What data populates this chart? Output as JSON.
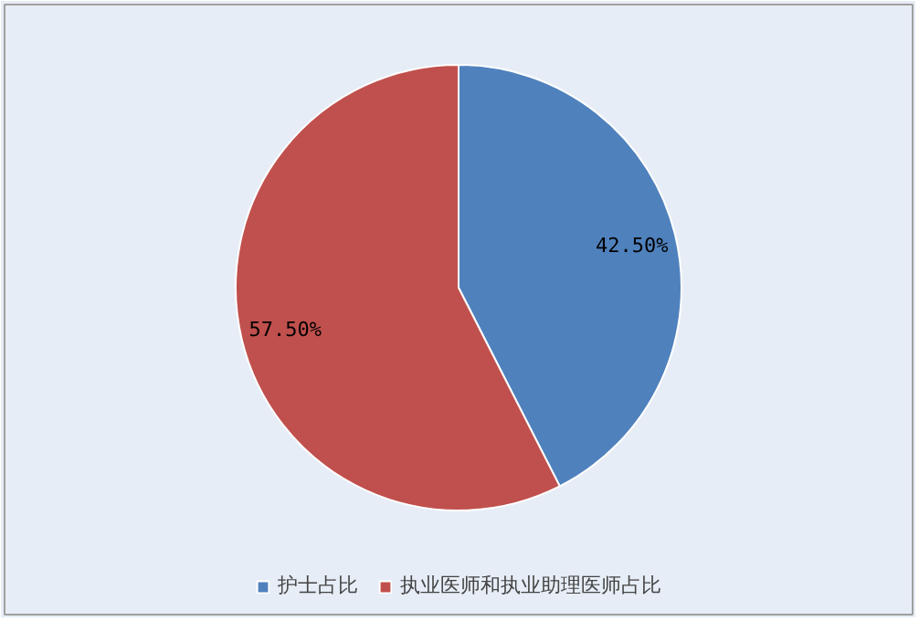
{
  "chart_data": {
    "type": "pie",
    "categories": [
      "护士占比",
      "执业医师和执业助理医师占比"
    ],
    "values": [
      42.5,
      57.5
    ],
    "colors": [
      "#4f81bd",
      "#c0504d"
    ],
    "value_labels": [
      "42.50%",
      "57.50%"
    ],
    "legend": "bottom"
  }
}
